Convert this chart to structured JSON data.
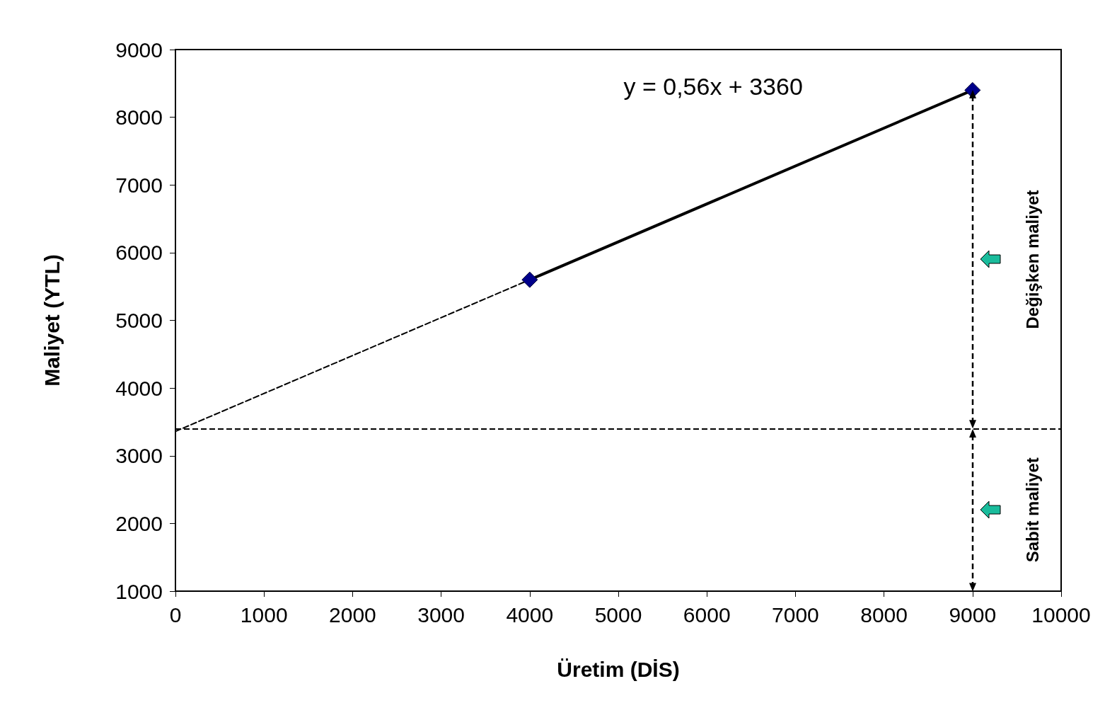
{
  "chart_data": {
    "type": "line",
    "xlabel": "Üretim (DİS)",
    "ylabel": "Maliyet (YTL)",
    "xlim": [
      0,
      10000
    ],
    "xticks": [
      0,
      1000,
      2000,
      3000,
      4000,
      5000,
      6000,
      7000,
      8000,
      9000,
      10000
    ],
    "ylim": [
      1000,
      9000
    ],
    "yticks": [
      1000,
      2000,
      3000,
      4000,
      5000,
      6000,
      7000,
      8000,
      9000
    ],
    "series": [
      {
        "color": "#000000",
        "colors": [
          "#00008b",
          "#00008b"
        ],
        "x": [
          4000,
          9000
        ],
        "values": [
          5600,
          8400
        ],
        "marker": "diamond",
        "line_style": "solid"
      },
      {
        "color": "#000000",
        "x": [
          0,
          4000
        ],
        "values": [
          3360,
          5600
        ],
        "marker": "none",
        "line_style": "dashed"
      }
    ],
    "ref_lines": [
      {
        "axis": "y",
        "value": 3400,
        "color": "#000000",
        "line_style": "dashed"
      }
    ],
    "annotations": [
      "y = 0,56x + 3360",
      "Değişken maliyet",
      "Sabit maliyet"
    ]
  }
}
